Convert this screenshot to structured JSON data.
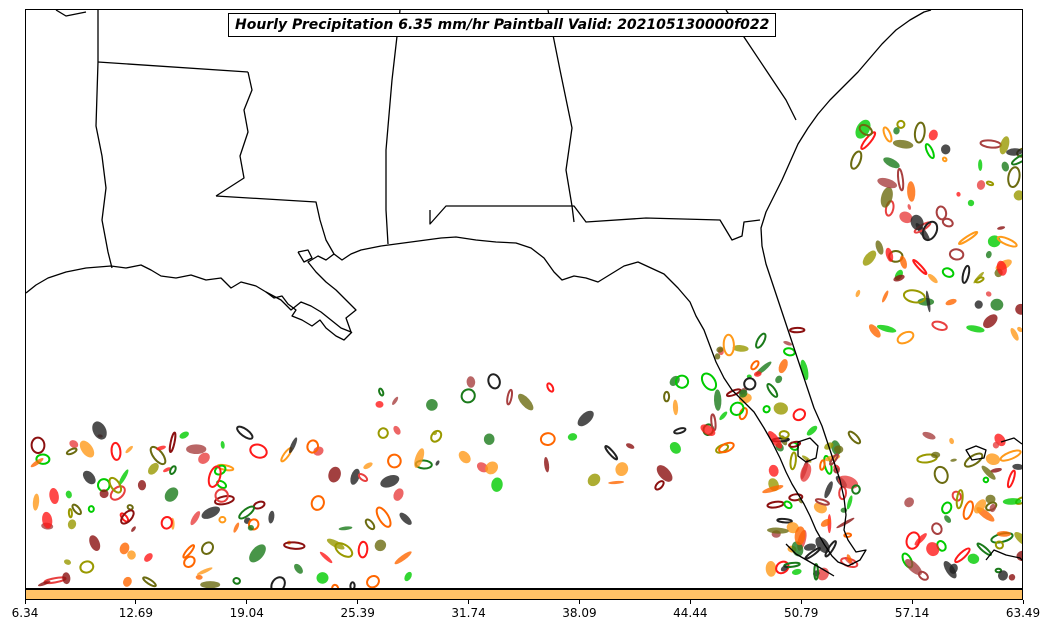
{
  "title": "Hourly Precipitation 6.35 mm/hr Paintball Valid: 202105130000f022",
  "colorbar": {
    "color": "#ffc266",
    "ticks": [
      "6.34",
      "12.69",
      "19.04",
      "25.39",
      "31.74",
      "38.09",
      "44.44",
      "50.79",
      "57.14",
      "63.49"
    ]
  },
  "map": {
    "region": "U.S. Gulf Coast and Florida",
    "features": [
      "coastline",
      "state-borders"
    ],
    "line_color": "#000000"
  },
  "paintball": {
    "member_colors": [
      "#00cc00",
      "#1a7a1a",
      "#8b1010",
      "#ff1a1a",
      "#ff6600",
      "#ff9a1a",
      "#999900",
      "#6b6b10",
      "#222222",
      "#a84040",
      "#e84040"
    ]
  }
}
